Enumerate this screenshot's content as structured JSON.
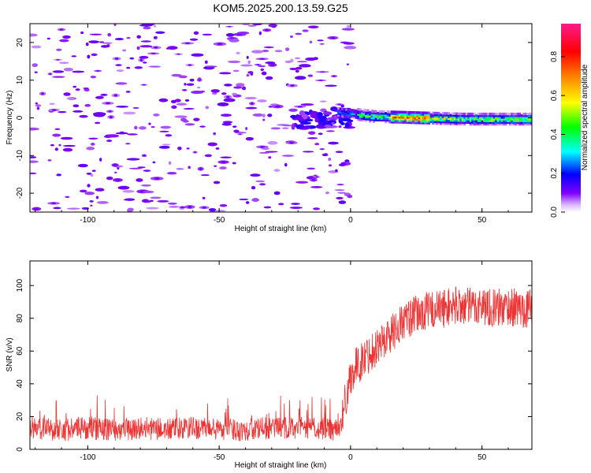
{
  "title": "KOM5.2025.200.13.59.G25",
  "chart_data": [
    {
      "type": "heatmap",
      "xlabel": "Height of straight line (km)",
      "ylabel": "Frequency (Hz)",
      "xlim": [
        -122,
        69
      ],
      "ylim": [
        -25,
        25
      ],
      "xticks": [
        -100,
        -50,
        0,
        50
      ],
      "yticks": [
        -20,
        -10,
        0,
        10,
        20
      ],
      "grid": false,
      "colorbar": {
        "label": "Normalized spectral amplitude",
        "range": [
          0,
          0.97
        ],
        "ticks": [
          0.0,
          0.2,
          0.4,
          0.6,
          0.8
        ],
        "colormap": "rainbow (white below threshold)"
      },
      "features": [
        {
          "description": "scattered weak noise patches (~0.05-0.15)",
          "x_range": [
            -122,
            0
          ],
          "y_range": [
            -25,
            25
          ]
        },
        {
          "description": "strong low-frequency signal band",
          "x_range": [
            -5,
            69
          ],
          "frequency_hz": [
            -1,
            2
          ],
          "amplitude": [
            0.2,
            0.95
          ]
        }
      ]
    },
    {
      "type": "line",
      "xlabel": "Height of straight line (km)",
      "ylabel": "SNR (v/v)",
      "xlim": [
        -122,
        69
      ],
      "ylim": [
        0,
        115
      ],
      "xticks": [
        -100,
        -50,
        0,
        50
      ],
      "yticks": [
        0,
        20,
        40,
        60,
        80,
        100
      ],
      "grid": false,
      "series": [
        {
          "color": "#ee3333",
          "x": [
            -122,
            -110,
            -100,
            -90,
            -80,
            -70,
            -60,
            -50,
            -40,
            -30,
            -20,
            -10,
            -4,
            -2,
            0,
            2,
            5,
            8,
            10,
            15,
            20,
            25,
            30,
            35,
            40,
            45,
            50,
            55,
            60,
            65,
            69
          ],
          "values": [
            13,
            12,
            13,
            12,
            13,
            12,
            13,
            12,
            12,
            13,
            13,
            13,
            12,
            30,
            45,
            50,
            55,
            60,
            63,
            70,
            78,
            82,
            85,
            86,
            88,
            87,
            88,
            86,
            87,
            86,
            86
          ]
        }
      ]
    }
  ]
}
